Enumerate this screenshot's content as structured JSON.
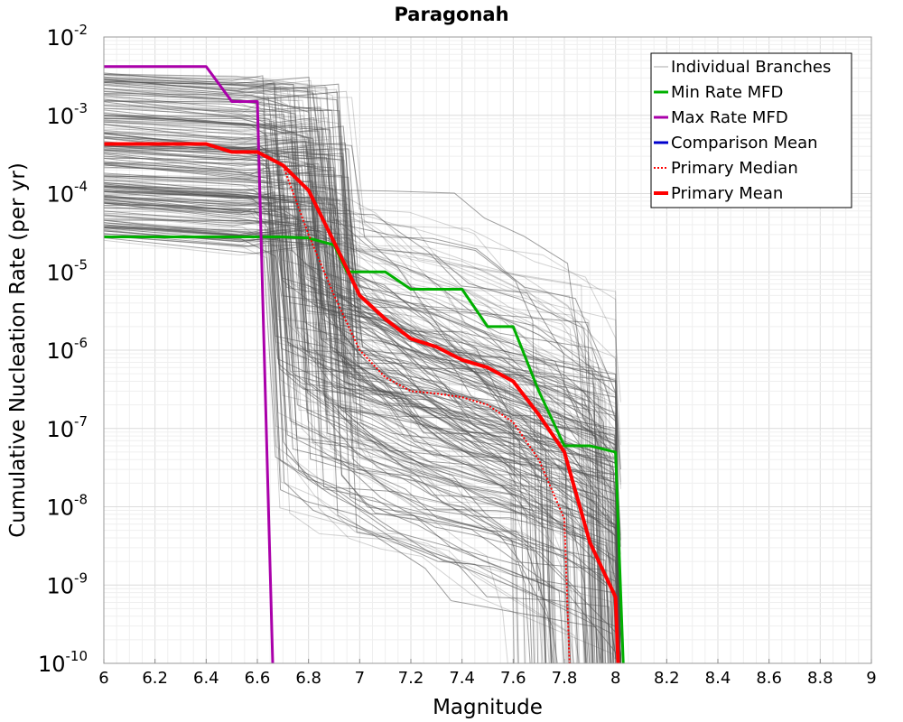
{
  "chart_data": {
    "type": "line",
    "title": "Paragonah",
    "xlabel": "Magnitude",
    "ylabel": "Cumulative Nucleation Rate (per yr)",
    "xlim": [
      6,
      9
    ],
    "ylim": [
      1e-10,
      0.01
    ],
    "yscale": "log",
    "grid": true,
    "legend_position": "top-right",
    "x_ticks": [
      "6",
      "6.2",
      "6.4",
      "6.6",
      "6.8",
      "7",
      "7.2",
      "7.4",
      "7.6",
      "7.8",
      "8",
      "8.2",
      "8.4",
      "8.6",
      "8.8",
      "9"
    ],
    "y_ticks": [
      {
        "base": "10",
        "exp": "-2"
      },
      {
        "base": "10",
        "exp": "-3"
      },
      {
        "base": "10",
        "exp": "-4"
      },
      {
        "base": "10",
        "exp": "-5"
      },
      {
        "base": "10",
        "exp": "-6"
      },
      {
        "base": "10",
        "exp": "-7"
      },
      {
        "base": "10",
        "exp": "-8"
      },
      {
        "base": "10",
        "exp": "-9"
      },
      {
        "base": "10",
        "exp": "-10"
      }
    ],
    "legend": [
      {
        "label": "Individual Branches",
        "color": "#aaaaaa",
        "style": "thin"
      },
      {
        "label": "Min Rate MFD",
        "color": "#00b000",
        "style": "solid"
      },
      {
        "label": "Max Rate MFD",
        "color": "#aa00aa",
        "style": "solid"
      },
      {
        "label": "Comparison Mean",
        "color": "#0000cc",
        "style": "solid"
      },
      {
        "label": "Primary Median",
        "color": "#ff0000",
        "style": "dotted"
      },
      {
        "label": "Primary Mean",
        "color": "#ff0000",
        "style": "thick"
      }
    ],
    "branch_color": "#505050",
    "series": [
      {
        "name": "Min Rate MFD",
        "color": "#00b000",
        "x": [
          6.0,
          6.6,
          6.7,
          6.8,
          6.9,
          6.95,
          7.0,
          7.1,
          7.2,
          7.3,
          7.4,
          7.5,
          7.6,
          7.7,
          7.8,
          7.9,
          8.0,
          8.03
        ],
        "y": [
          2.8e-05,
          2.8e-05,
          2.8e-05,
          2.7e-05,
          2.2e-05,
          1e-05,
          1e-05,
          1e-05,
          6e-06,
          6e-06,
          6e-06,
          2e-06,
          2e-06,
          3e-07,
          6e-08,
          6e-08,
          5e-08,
          1e-10
        ]
      },
      {
        "name": "Max Rate MFD",
        "color": "#aa00aa",
        "x": [
          6.0,
          6.4,
          6.5,
          6.6,
          6.66
        ],
        "y": [
          0.0042,
          0.0042,
          0.0015,
          0.0015,
          1e-10
        ]
      },
      {
        "name": "Primary Median",
        "color": "#ff0000",
        "x": [
          6.0,
          6.4,
          6.5,
          6.6,
          6.7,
          6.8,
          6.9,
          7.0,
          7.1,
          7.2,
          7.3,
          7.4,
          7.5,
          7.6,
          7.7,
          7.8,
          7.82
        ],
        "y": [
          0.00043,
          0.00043,
          0.00034,
          0.00034,
          0.00023,
          3e-05,
          5e-06,
          1e-06,
          4.5e-07,
          3e-07,
          2.8e-07,
          2.5e-07,
          2e-07,
          1.2e-07,
          4e-08,
          7e-09,
          1e-10
        ]
      },
      {
        "name": "Primary Mean",
        "color": "#ff0000",
        "x": [
          6.0,
          6.4,
          6.5,
          6.6,
          6.7,
          6.8,
          6.9,
          7.0,
          7.1,
          7.2,
          7.3,
          7.4,
          7.5,
          7.6,
          7.7,
          7.8,
          7.9,
          8.0,
          8.01
        ],
        "y": [
          0.00043,
          0.00043,
          0.00034,
          0.00034,
          0.00023,
          0.00011,
          2.4e-05,
          5e-06,
          2.5e-06,
          1.4e-06,
          1.1e-06,
          7.5e-07,
          6e-07,
          4e-07,
          1.5e-07,
          5e-08,
          3.5e-09,
          7e-10,
          1e-10
        ]
      }
    ]
  }
}
